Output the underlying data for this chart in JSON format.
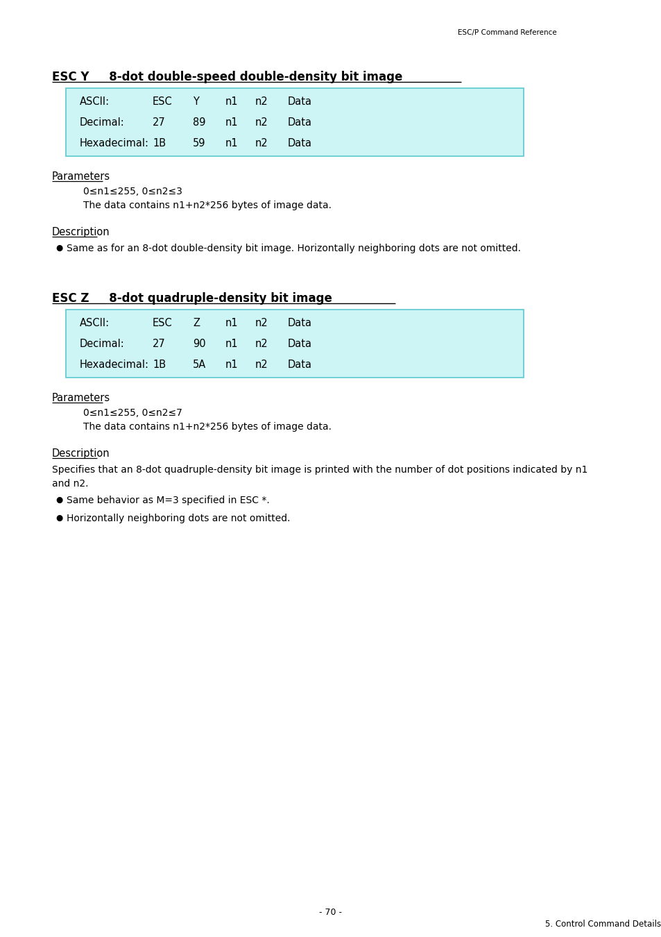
{
  "page_header": "ESC/P Command Reference",
  "section1_title_bold": "ESC Y",
  "section1_title_rest": "     8-dot double-speed double-density bit image",
  "section1_table": {
    "rows": [
      [
        "ASCII:",
        "ESC",
        "Y",
        "n1",
        "n2",
        "Data"
      ],
      [
        "Decimal:",
        "27",
        "89",
        "n1",
        "n2",
        "Data"
      ],
      [
        "Hexadecimal:",
        "1B",
        "59",
        "n1",
        "n2",
        "Data"
      ]
    ],
    "bg_color": "#cef5f5"
  },
  "section1_params_title": "Parameters",
  "section1_param1": "0≤n1≤255, 0≤n2≤3",
  "section1_param2": "The data contains n1+n2*256 bytes of image data.",
  "section1_desc_title": "Description",
  "section1_bullet1": "Same as for an 8-dot double-density bit image. Horizontally neighboring dots are not omitted.",
  "section2_title_bold": "ESC Z",
  "section2_title_rest": "     8-dot quadruple-density bit image",
  "section2_table": {
    "rows": [
      [
        "ASCII:",
        "ESC",
        "Z",
        "n1",
        "n2",
        "Data"
      ],
      [
        "Decimal:",
        "27",
        "90",
        "n1",
        "n2",
        "Data"
      ],
      [
        "Hexadecimal:",
        "1B",
        "5A",
        "n1",
        "n2",
        "Data"
      ]
    ],
    "bg_color": "#cef5f5"
  },
  "section2_params_title": "Parameters",
  "section2_param1": "0≤n1≤255, 0≤n2≤7",
  "section2_param2": "The data contains n1+n2*256 bytes of image data.",
  "section2_desc_title": "Description",
  "section2_desc_line1": "Specifies that an 8-dot quadruple-density bit image is printed with the number of dot positions indicated by n1",
  "section2_desc_line2": "and n2.",
  "section2_bullet1": "Same behavior as M=3 specified in ESC *.",
  "section2_bullet2": "Horizontally neighboring dots are not omitted.",
  "footer_page": "- 70 -",
  "footer_chapter": "5. Control Command Details",
  "bg_color": "#ffffff",
  "text_color": "#000000",
  "table_border_color": "#5bc8d0"
}
